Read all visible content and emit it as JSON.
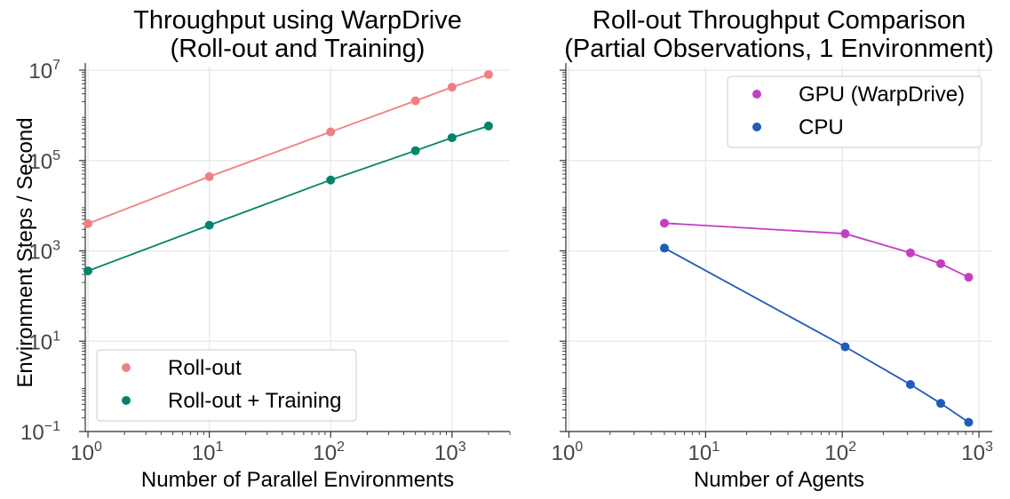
{
  "chart_data": [
    {
      "type": "line",
      "title_lines": [
        "Throughput using WarpDrive",
        "(Roll-out and Training)"
      ],
      "xlabel": "Number of Parallel Environments",
      "ylabel": "Environment Steps / Second",
      "xscale": "log",
      "yscale": "log",
      "xlim": [
        0.95,
        3000
      ],
      "ylim": [
        0.1,
        12000000
      ],
      "x_ticks": [
        {
          "base": "10",
          "exp": "0",
          "value": 1
        },
        {
          "base": "10",
          "exp": "1",
          "value": 10
        },
        {
          "base": "10",
          "exp": "2",
          "value": 100
        },
        {
          "base": "10",
          "exp": "3",
          "value": 1000
        }
      ],
      "y_ticks": [
        {
          "base": "10",
          "exp": "−1",
          "value": 0.1
        },
        {
          "base": "10",
          "exp": "1",
          "value": 10
        },
        {
          "base": "10",
          "exp": "3",
          "value": 1000
        },
        {
          "base": "10",
          "exp": "5",
          "value": 100000
        },
        {
          "base": "10",
          "exp": "7",
          "value": 10000000
        }
      ],
      "legend_position": "lower-left",
      "series": [
        {
          "name": "Roll-out",
          "color": "#f08080",
          "x": [
            1,
            10,
            100,
            500,
            1000,
            2000
          ],
          "y": [
            4000,
            44000,
            430000,
            2100000,
            4200000,
            8000000
          ]
        },
        {
          "name": "Roll-out + Training",
          "color": "#00846b",
          "x": [
            1,
            10,
            100,
            500,
            1000,
            2000
          ],
          "y": [
            360,
            3700,
            37000,
            165000,
            320000,
            580000
          ]
        }
      ]
    },
    {
      "type": "line",
      "title_lines": [
        "Roll-out Throughput Comparison",
        "(Partial Observations, 1 Environment)"
      ],
      "xlabel": "Number of Agents",
      "ylabel": "",
      "xscale": "log",
      "yscale": "log",
      "xlim": [
        0.95,
        1250
      ],
      "ylim": [
        0.1,
        12000000
      ],
      "x_ticks": [
        {
          "base": "10",
          "exp": "0",
          "value": 1
        },
        {
          "base": "10",
          "exp": "1",
          "value": 10
        },
        {
          "base": "10",
          "exp": "2",
          "value": 100
        },
        {
          "base": "10",
          "exp": "3",
          "value": 1000
        }
      ],
      "legend_position": "upper-right",
      "series": [
        {
          "name": "GPU (WarpDrive)",
          "color": "#c23fc4",
          "x": [
            5,
            105,
            315,
            525,
            840
          ],
          "y": [
            4100,
            2400,
            900,
            520,
            260
          ]
        },
        {
          "name": "CPU",
          "color": "#1f5bb8",
          "x": [
            5,
            105,
            315,
            525,
            840
          ],
          "y": [
            1150,
            7.5,
            1.1,
            0.42,
            0.16
          ]
        }
      ]
    }
  ]
}
